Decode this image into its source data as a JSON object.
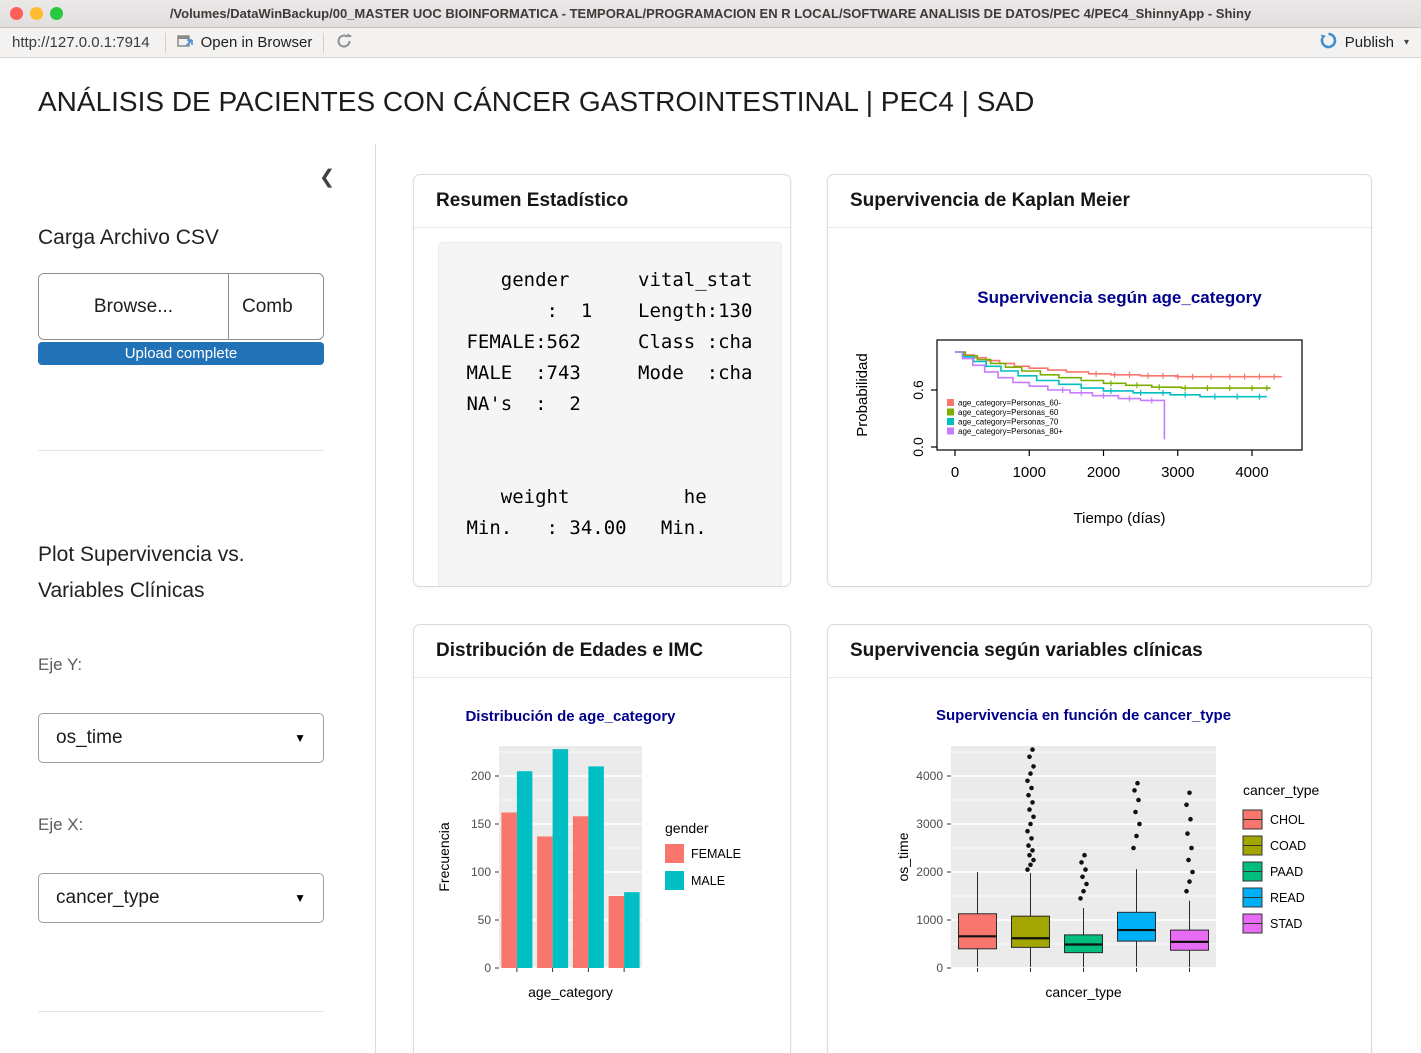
{
  "window": {
    "title": "/Volumes/DataWinBackup/00_MASTER UOC BIOINFORMATICA - TEMPORAL/PROGRAMACION EN R LOCAL/SOFTWARE ANALISIS DE DATOS/PEC 4/PEC4_ShinnyApp - Shiny",
    "url": "http://127.0.0.1:7914",
    "open_in_browser_label": "Open in Browser",
    "publish_label": "Publish"
  },
  "page": {
    "title": "ANÁLISIS DE PACIENTES CON CÁNCER GASTROINTESTINAL | PEC4 | SAD"
  },
  "icons": {
    "collapse_chevron": "❮",
    "select_caret": "▼",
    "publish_caret": "▾"
  },
  "sidebar": {
    "upload_heading": "Carga Archivo CSV",
    "browse_label": "Browse...",
    "filename": "Comb",
    "upload_status": "Upload complete",
    "plot_heading": "Plot Supervivencia vs. Variables Clínicas",
    "eje_y_label": "Eje Y:",
    "eje_y_value": "os_time",
    "eje_x_label": "Eje X:",
    "eje_x_value": "cancer_type"
  },
  "cards": {
    "summary_title": "Resumen Estadístico",
    "km_title": "Supervivencia de Kaplan Meier",
    "dist_title": "Distribución de Edades e IMC",
    "surv_title": "Supervivencia según variables clínicas"
  },
  "summary_output": {
    "lines": [
      "    gender      vital_stat",
      "        :  1    Length:130",
      " FEMALE:562     Class :cha",
      " MALE  :743     Mode  :cha",
      " NA's  :  2",
      "",
      "",
      "    weight          he",
      " Min.   : 34.00   Min."
    ]
  },
  "colors": {
    "progress_bar": "#2272b8",
    "chart_title_blue": "#00008B",
    "ggplot_panel": "#EBEBEB"
  },
  "chart_data": [
    {
      "type": "line",
      "subtype": "kaplan-meier-step",
      "title": "Supervivencia según age_category",
      "xlabel": "Tiempo (días)",
      "ylabel": "Probabilidad",
      "xlim": [
        0,
        4600
      ],
      "ylim": [
        0,
        1
      ],
      "xticks": [
        0,
        1000,
        2000,
        3000,
        4000
      ],
      "yticks": [
        0,
        0.6
      ],
      "legend_position": "inside-left",
      "series": [
        {
          "label": "age_category=Personas_60-",
          "color": "#F8766D",
          "steps": [
            [
              0,
              1
            ],
            [
              120,
              0.97
            ],
            [
              260,
              0.94
            ],
            [
              420,
              0.91
            ],
            [
              600,
              0.88
            ],
            [
              800,
              0.85
            ],
            [
              1000,
              0.83
            ],
            [
              1250,
              0.81
            ],
            [
              1500,
              0.79
            ],
            [
              1800,
              0.77
            ],
            [
              2100,
              0.76
            ],
            [
              2500,
              0.75
            ],
            [
              3000,
              0.74
            ],
            [
              4400,
              0.74
            ]
          ],
          "censor_times": [
            1900,
            2150,
            2350,
            2600,
            2800,
            3000,
            3200,
            3450,
            3700,
            3900,
            4100,
            4300
          ]
        },
        {
          "label": "age_category=Personas_60",
          "color": "#7CAE00",
          "steps": [
            [
              0,
              1
            ],
            [
              140,
              0.96
            ],
            [
              300,
              0.92
            ],
            [
              480,
              0.88
            ],
            [
              680,
              0.84
            ],
            [
              900,
              0.8
            ],
            [
              1150,
              0.76
            ],
            [
              1400,
              0.73
            ],
            [
              1700,
              0.7
            ],
            [
              2000,
              0.67
            ],
            [
              2300,
              0.65
            ],
            [
              2650,
              0.63
            ],
            [
              3050,
              0.62
            ],
            [
              4250,
              0.62
            ]
          ],
          "censor_times": [
            2100,
            2450,
            2750,
            3100,
            3400,
            3700,
            4000,
            4200
          ]
        },
        {
          "label": "age_category=Personas_70",
          "color": "#00BFC4",
          "steps": [
            [
              0,
              1
            ],
            [
              110,
              0.95
            ],
            [
              250,
              0.9
            ],
            [
              420,
              0.85
            ],
            [
              620,
              0.8
            ],
            [
              850,
              0.75
            ],
            [
              1100,
              0.7
            ],
            [
              1400,
              0.66
            ],
            [
              1700,
              0.62
            ],
            [
              2000,
              0.59
            ],
            [
              2400,
              0.57
            ],
            [
              2900,
              0.55
            ],
            [
              3300,
              0.53
            ],
            [
              4200,
              0.53
            ]
          ],
          "censor_times": [
            2100,
            2500,
            2800,
            3100,
            3500,
            3800,
            4100
          ]
        },
        {
          "label": "age_category=Personas_80+",
          "color": "#C77CFF",
          "steps": [
            [
              0,
              1
            ],
            [
              100,
              0.93
            ],
            [
              240,
              0.86
            ],
            [
              400,
              0.79
            ],
            [
              580,
              0.73
            ],
            [
              780,
              0.68
            ],
            [
              1000,
              0.64
            ],
            [
              1250,
              0.6
            ],
            [
              1550,
              0.57
            ],
            [
              1850,
              0.54
            ],
            [
              2200,
              0.51
            ],
            [
              2500,
              0.49
            ],
            [
              2820,
              0.08
            ]
          ],
          "censor_times": [
            1450,
            1700,
            2000,
            2350,
            2650
          ]
        }
      ]
    },
    {
      "type": "bar",
      "title": "Distribución de age_category",
      "xlabel": "age_category",
      "ylabel": "Frecuencia",
      "yticks": [
        0,
        50,
        100,
        150,
        200
      ],
      "ylim": [
        0,
        232
      ],
      "categories": [
        "",
        "",
        "",
        ""
      ],
      "legend_title": "gender",
      "legend_position": "right",
      "grid": true,
      "series": [
        {
          "name": "FEMALE",
          "color": "#F8766D",
          "values": [
            162,
            137,
            158,
            75
          ]
        },
        {
          "name": "MALE",
          "color": "#00BFC4",
          "values": [
            205,
            228,
            210,
            79
          ]
        }
      ]
    },
    {
      "type": "boxplot",
      "title": "Supervivencia en función de cancer_type",
      "xlabel": "cancer_type",
      "ylabel": "os_time",
      "yticks": [
        0,
        1000,
        2000,
        3000,
        4000
      ],
      "ylim": [
        0,
        4650
      ],
      "legend_title": "cancer_type",
      "legend_position": "right",
      "grid": true,
      "boxes": [
        {
          "name": "CHOL",
          "color": "#F8766D",
          "low": 30,
          "q1": 400,
          "median": 660,
          "q3": 1130,
          "high": 2000,
          "outliers": []
        },
        {
          "name": "COAD",
          "color": "#A3A500",
          "low": 20,
          "q1": 430,
          "median": 620,
          "q3": 1080,
          "high": 1980,
          "outliers": [
            2050,
            2150,
            2250,
            2350,
            2450,
            2550,
            2700,
            2850,
            3000,
            3150,
            3300,
            3450,
            3600,
            3750,
            3900,
            4050,
            4200,
            4400,
            4550
          ]
        },
        {
          "name": "PAAD",
          "color": "#00BF7D",
          "low": 15,
          "q1": 320,
          "median": 490,
          "q3": 690,
          "high": 1250,
          "outliers": [
            1450,
            1600,
            1750,
            1900,
            2050,
            2200,
            2350
          ]
        },
        {
          "name": "READ",
          "color": "#00B0F6",
          "low": 30,
          "q1": 560,
          "median": 790,
          "q3": 1160,
          "high": 2060,
          "outliers": [
            2500,
            2750,
            3000,
            3250,
            3500,
            3700,
            3850
          ]
        },
        {
          "name": "STAD",
          "color": "#E76BF3",
          "low": 15,
          "q1": 370,
          "median": 545,
          "q3": 790,
          "high": 1400,
          "outliers": [
            1600,
            1800,
            2000,
            2250,
            2500,
            2800,
            3100,
            3400,
            3650
          ]
        }
      ]
    }
  ]
}
